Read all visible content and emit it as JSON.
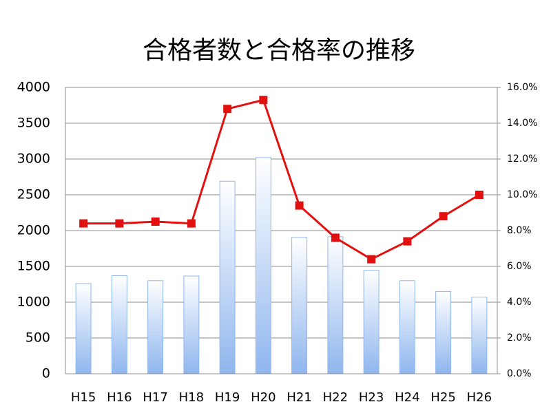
{
  "chart_data": {
    "type": "bar",
    "title": "合格者数と合格率の推移",
    "categories": [
      "H15",
      "H16",
      "H17",
      "H18",
      "H19",
      "H20",
      "H21",
      "H22",
      "H23",
      "H24",
      "H25",
      "H26"
    ],
    "series": [
      {
        "type": "bar",
        "color": "#8fb6ee",
        "values": [
          1260,
          1370,
          1300,
          1365,
          2690,
          3020,
          1905,
          1915,
          1445,
          1300,
          1150,
          1070
        ]
      },
      {
        "type": "line",
        "axis": "y2",
        "color": "#e31010",
        "values": [
          8.4,
          8.4,
          8.5,
          8.4,
          14.8,
          15.3,
          9.4,
          7.6,
          6.4,
          7.4,
          8.8,
          10.0
        ]
      }
    ],
    "ylim": [
      0,
      4000
    ],
    "yticks": [
      0,
      500,
      1000,
      1500,
      2000,
      2500,
      3000,
      3500,
      4000
    ],
    "y2lim": [
      0,
      16
    ],
    "y2ticks": [
      {
        "value": 0,
        "label": "0.0%"
      },
      {
        "value": 2,
        "label": "2.0%"
      },
      {
        "value": 4,
        "label": "4.0%"
      },
      {
        "value": 6,
        "label": "6.0%"
      },
      {
        "value": 8,
        "label": "8.0%"
      },
      {
        "value": 10,
        "label": "10.0%"
      },
      {
        "value": 12,
        "label": "12.0%"
      },
      {
        "value": 14,
        "label": "14.0%"
      },
      {
        "value": 16,
        "label": "16.0%"
      }
    ],
    "grid": true
  }
}
